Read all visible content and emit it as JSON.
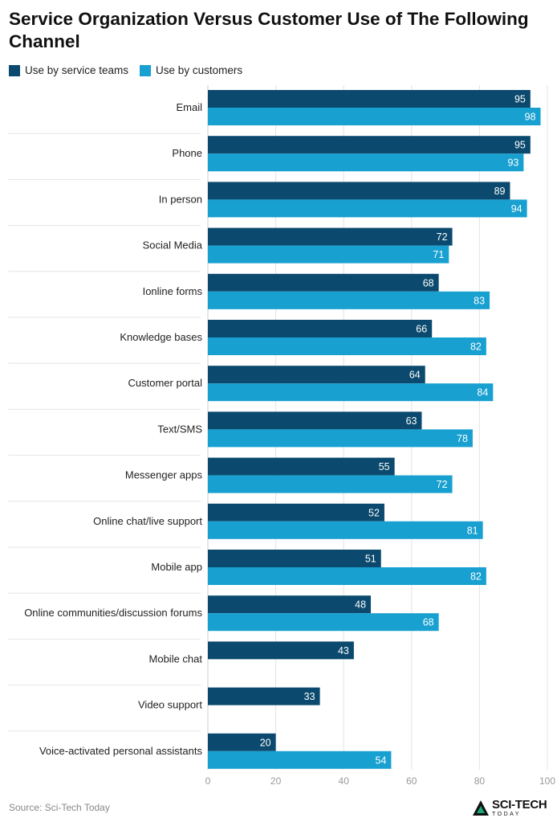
{
  "title": "Service Organization Versus Customer Use of The Following Channel",
  "source": "Source: Sci-Tech Today",
  "logo": {
    "main": "SCI-TECH",
    "sub": "TODAY"
  },
  "colors": {
    "service": "#0b4a6e",
    "customers": "#18a0d0",
    "grid": "#e3e3e3",
    "axis_text": "#999999"
  },
  "chart_data": {
    "type": "bar",
    "orientation": "horizontal",
    "categories": [
      "Email",
      "Phone",
      "In person",
      "Social Media",
      "Ionline forms",
      "Knowledge bases",
      "Customer portal",
      "Text/SMS",
      "Messenger apps",
      "Online chat/live support",
      "Mobile app",
      "Online communities/discussion forums",
      "Mobile chat",
      "Video support",
      "Voice-activated personal assistants"
    ],
    "series": [
      {
        "name": "Use by service teams",
        "values": [
          95,
          95,
          89,
          72,
          68,
          66,
          64,
          63,
          55,
          52,
          51,
          48,
          43,
          33,
          20
        ]
      },
      {
        "name": "Use by customers",
        "values": [
          98,
          93,
          94,
          71,
          83,
          82,
          84,
          78,
          72,
          81,
          82,
          68,
          null,
          null,
          54
        ]
      }
    ],
    "xlim": [
      0,
      100
    ],
    "xticks": [
      0,
      20,
      40,
      60,
      80,
      100
    ],
    "grid": true,
    "legend": "top-left"
  }
}
